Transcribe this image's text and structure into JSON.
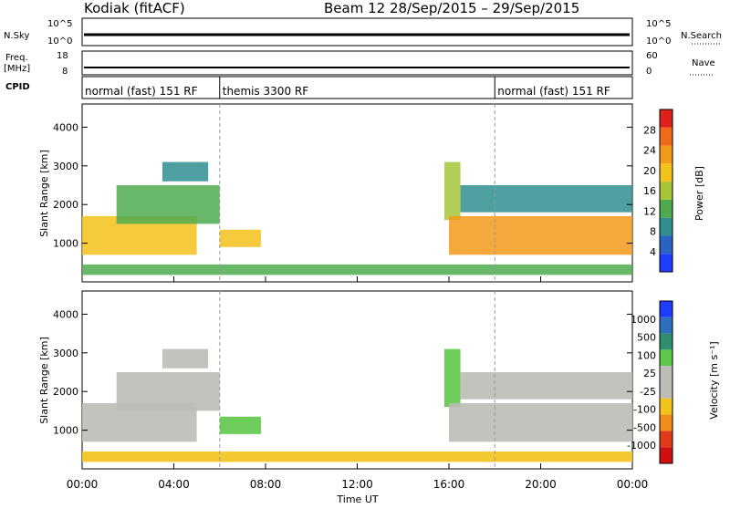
{
  "header": {
    "station": "Kodiak (fitACF)",
    "beam_date": "Beam 12  28/Sep/2015 – 29/Sep/2015"
  },
  "top_panels": {
    "nsky_label": "N.Sky",
    "nsky_ticks": [
      "10^5",
      "10^0"
    ],
    "nsearch_label": "N.Search",
    "nsearch_ticks": [
      "10^5",
      "10^0"
    ],
    "freq_label_line1": "Freq.",
    "freq_label_line2": "[MHz]",
    "freq_ticks": [
      "18",
      "8"
    ],
    "nave_label": "Nave",
    "nave_ticks": [
      "60",
      "0"
    ],
    "cpid_label": "CPID",
    "modes": [
      {
        "label": "normal (fast) 151 RF",
        "start_hour": 0,
        "end_hour": 6
      },
      {
        "label": "themis 3300 RF",
        "start_hour": 6,
        "end_hour": 18
      },
      {
        "label": "normal (fast) 151 RF",
        "start_hour": 18,
        "end_hour": 24
      }
    ]
  },
  "x_axis": {
    "title": "Time UT",
    "ticks": [
      "00:00",
      "04:00",
      "08:00",
      "12:00",
      "16:00",
      "20:00",
      "00:00"
    ]
  },
  "power_panel": {
    "ylabel": "Slant Range [km]",
    "yticks": [
      "1000",
      "2000",
      "3000",
      "4000"
    ],
    "colorbar_label": "Power [dB]",
    "colorbar_ticks": [
      "4",
      "8",
      "12",
      "16",
      "20",
      "24",
      "28"
    ],
    "colors": [
      "#1f3cff",
      "#2a63c4",
      "#2f8f8f",
      "#4faa4f",
      "#a6c63a",
      "#f3c21b",
      "#f39a1a",
      "#ef6a1a",
      "#e0201a"
    ]
  },
  "velocity_panel": {
    "ylabel": "Slant Range [km]",
    "yticks": [
      "1000",
      "2000",
      "3000",
      "4000"
    ],
    "colorbar_label": "Velocity [m s⁻¹]",
    "colorbar_ticks": [
      "1000",
      "500",
      "100",
      "25",
      "-25",
      "-100",
      "-500",
      "-1000"
    ],
    "colors": [
      "#1f3cff",
      "#2f6fc0",
      "#2f8f6f",
      "#5fc84a",
      "#bdbdb6",
      "#bdbdb6",
      "#f3c21b",
      "#f08d1a",
      "#e03a1a",
      "#d01010"
    ]
  },
  "chart_data": {
    "type": "heatmap",
    "x_range_hours": [
      0,
      24
    ],
    "y_range_km": [
      0,
      4600
    ],
    "bands": [
      {
        "hour_start": 0.0,
        "hour_end": 5.0,
        "range_start_km": 700,
        "range_end_km": 1700,
        "power_db": 20,
        "velocity": -25
      },
      {
        "hour_start": 1.5,
        "hour_end": 6.0,
        "range_start_km": 1500,
        "range_end_km": 2500,
        "power_db": 12,
        "velocity": -25
      },
      {
        "hour_start": 3.5,
        "hour_end": 5.5,
        "range_start_km": 2600,
        "range_end_km": 3100,
        "power_db": 8,
        "velocity": 25
      },
      {
        "hour_start": 6.0,
        "hour_end": 7.8,
        "range_start_km": 900,
        "range_end_km": 1350,
        "power_db": 20,
        "velocity": 100
      },
      {
        "hour_start": 15.8,
        "hour_end": 16.5,
        "range_start_km": 1600,
        "range_end_km": 3100,
        "power_db": 16,
        "velocity": 100
      },
      {
        "hour_start": 16.0,
        "hour_end": 24.0,
        "range_start_km": 700,
        "range_end_km": 1700,
        "power_db": 24,
        "velocity": -25
      },
      {
        "hour_start": 16.5,
        "hour_end": 24.0,
        "range_start_km": 1800,
        "range_end_km": 2500,
        "power_db": 8,
        "velocity": 25
      },
      {
        "hour_start": 0.0,
        "hour_end": 24.0,
        "range_start_km": 180,
        "range_end_km": 450,
        "power_db": 12,
        "velocity": -100
      }
    ]
  }
}
